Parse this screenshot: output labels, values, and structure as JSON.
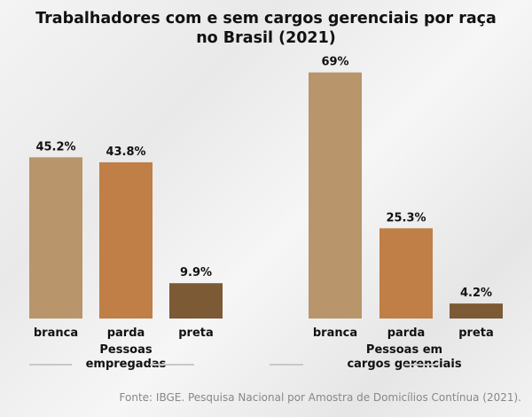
{
  "title_line1": "Trabalhadores com e sem cargos gerenciais por raça",
  "title_line2": "no Brasil (2021)",
  "source": "Fonte: IBGE. Pesquisa Nacional por Amostra de Domicílios Contínua (2021).",
  "colors": {
    "branca": "#b8956a",
    "parda": "#bf7f46",
    "preta": "#7b5a35"
  },
  "chart_data": [
    {
      "type": "bar",
      "group_label": "Pessoas empregadas",
      "group_label_lines": [
        "Pessoas",
        "empregadas"
      ],
      "categories": [
        "branca",
        "parda",
        "preta"
      ],
      "values": [
        45.2,
        43.8,
        9.9
      ],
      "data_labels": [
        "45.2%",
        "43.8%",
        "9.9%"
      ],
      "unit": "%",
      "grid": false
    },
    {
      "type": "bar",
      "group_label": "Pessoas em cargos gerenciais",
      "group_label_lines": [
        "Pessoas em",
        "cargos gerenciais"
      ],
      "categories": [
        "branca",
        "parda",
        "preta"
      ],
      "values": [
        69,
        25.3,
        4.2
      ],
      "data_labels": [
        "69%",
        "25.3%",
        "4.2%"
      ],
      "unit": "%",
      "grid": false
    }
  ]
}
